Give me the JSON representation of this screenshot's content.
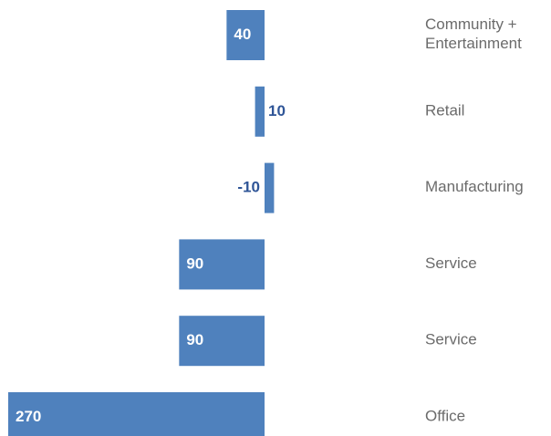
{
  "chart_data": {
    "type": "bar",
    "orientation": "horizontal",
    "categories": [
      [
        "Community +",
        "Entertainment"
      ],
      [
        "Retail"
      ],
      [
        "Manufacturing"
      ],
      [
        "Service"
      ],
      [
        "Service"
      ],
      [
        "Office"
      ]
    ],
    "values": [
      40,
      10,
      -10,
      90,
      90,
      270
    ],
    "value_labels": [
      "40",
      "10",
      "-10",
      "90",
      "90",
      "270"
    ],
    "xlim": [
      -270,
      40
    ],
    "grid": false,
    "legend": "none",
    "colors": {
      "bar": "#4F81BD",
      "label_inside": "#FFFFFF",
      "label_outside": "#2F5597",
      "category_text": "#6B6B6B"
    }
  }
}
